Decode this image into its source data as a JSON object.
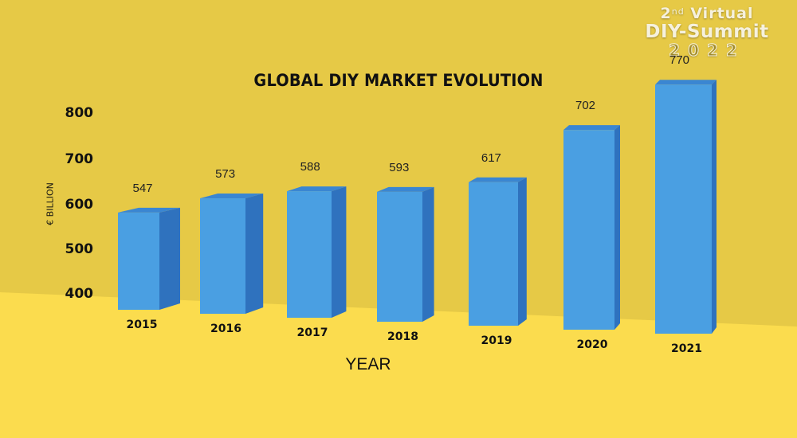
{
  "logo": {
    "edition_number": "2",
    "edition_suffix": "nd",
    "line1": "Virtual",
    "line2": "DIY-Summit",
    "line3": "2022"
  },
  "chart_data": {
    "type": "bar",
    "title": "GLOBAL DIY MARKET EVOLUTION",
    "xlabel": "YEAR",
    "ylabel": "€ BILLION",
    "ylim": [
      400,
      800
    ],
    "yticks": [
      400,
      500,
      600,
      700,
      800
    ],
    "categories": [
      "2015",
      "2016",
      "2017",
      "2018",
      "2019",
      "2020",
      "2021"
    ],
    "values": [
      547,
      573,
      588,
      593,
      617,
      702,
      770
    ],
    "data_labels": [
      "547",
      "573",
      "588",
      "593",
      "617",
      "702",
      "770"
    ],
    "colors": {
      "bar_front": "#4a9fe2",
      "bar_side": "#2f72be",
      "bar_top": "#3a86d2",
      "wall": "#e6c946",
      "floor": "#fbdc4e"
    },
    "grid": false,
    "legend": "none"
  }
}
